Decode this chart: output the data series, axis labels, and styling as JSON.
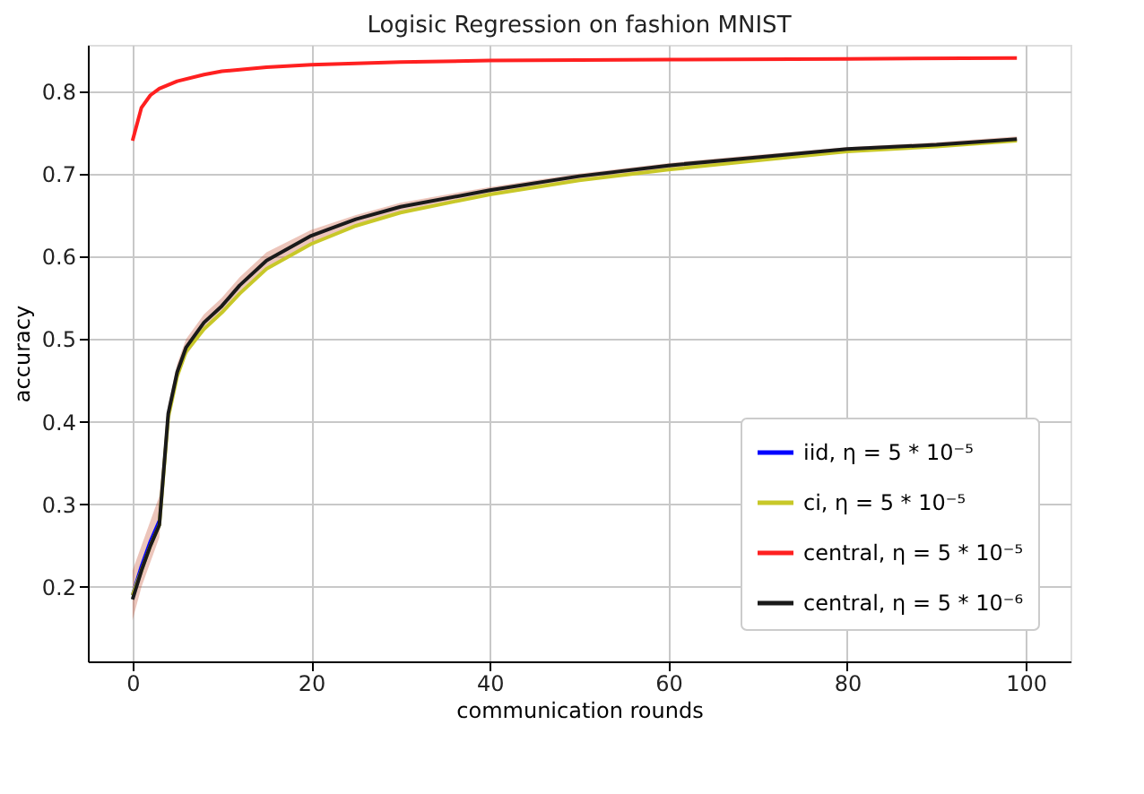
{
  "chart_data": {
    "type": "line",
    "title": "Logisic Regression on fashion MNIST",
    "xlabel": "communication rounds",
    "ylabel": "accuracy",
    "xlim": [
      -5,
      105
    ],
    "xticks": [
      0,
      20,
      40,
      60,
      80,
      100
    ],
    "ylim": [
      0.11,
      0.856
    ],
    "yticks": [
      0.2,
      0.3,
      0.4,
      0.5,
      0.6,
      0.7,
      0.8
    ],
    "grid": true,
    "legend": "bottom right",
    "marker": "none",
    "line_style": "solid",
    "series": [
      {
        "name": "iid, η = 5 * 10⁻⁵",
        "color": "#0000ff",
        "x": [
          0,
          1,
          2,
          3,
          4,
          5,
          6,
          8,
          10,
          12,
          15,
          20,
          25,
          30,
          40,
          50,
          60,
          70,
          80,
          90,
          99
        ],
        "values": [
          0.19,
          0.225,
          0.255,
          0.28,
          null,
          null,
          null,
          null,
          null,
          null,
          null,
          null,
          null,
          null,
          null,
          null,
          null,
          null,
          null,
          null,
          null
        ],
        "lower": [
          0.16,
          0.2,
          0.23,
          0.26,
          0.4,
          0.45,
          0.48,
          0.51,
          0.53,
          0.555,
          0.585,
          0.615,
          0.637,
          0.653,
          0.674,
          0.692,
          0.705,
          0.716,
          0.726,
          0.732,
          0.739
        ],
        "upper": [
          0.22,
          0.25,
          0.28,
          0.31,
          0.42,
          0.47,
          0.5,
          0.53,
          0.55,
          0.575,
          0.605,
          0.632,
          0.65,
          0.665,
          0.684,
          0.7,
          0.713,
          0.723,
          0.732,
          0.738,
          0.745
        ]
      },
      {
        "name": "ci, η = 5 * 10⁻⁵",
        "color": "#c8c828",
        "x": [
          0,
          1,
          2,
          3,
          4,
          5,
          6,
          8,
          10,
          12,
          15,
          20,
          25,
          30,
          40,
          50,
          60,
          70,
          80,
          90,
          99
        ],
        "values": [
          0.19,
          0.22,
          0.25,
          0.275,
          0.405,
          0.455,
          0.485,
          0.512,
          0.532,
          0.555,
          0.585,
          0.615,
          0.637,
          0.653,
          0.675,
          0.692,
          0.705,
          0.716,
          0.727,
          0.733,
          0.74
        ]
      },
      {
        "name": "central, η = 5 * 10⁻⁵",
        "color": "#ff2020",
        "x": [
          0,
          1,
          2,
          3,
          5,
          8,
          10,
          15,
          20,
          30,
          40,
          60,
          80,
          99
        ],
        "values": [
          0.74,
          0.78,
          0.795,
          0.803,
          0.812,
          0.82,
          0.824,
          0.829,
          0.832,
          0.835,
          0.837,
          0.838,
          0.839,
          0.84
        ]
      },
      {
        "name": "central, η = 5 * 10⁻⁶",
        "color": "#1a1a1a",
        "x": [
          0,
          1,
          2,
          3,
          4,
          5,
          6,
          8,
          10,
          12,
          15,
          20,
          25,
          30,
          40,
          50,
          60,
          70,
          80,
          90,
          99
        ],
        "values": [
          0.185,
          0.22,
          0.25,
          0.275,
          0.41,
          0.46,
          0.49,
          0.52,
          0.54,
          0.565,
          0.595,
          0.625,
          0.645,
          0.66,
          0.68,
          0.697,
          0.71,
          0.72,
          0.73,
          0.735,
          0.742
        ]
      }
    ]
  }
}
